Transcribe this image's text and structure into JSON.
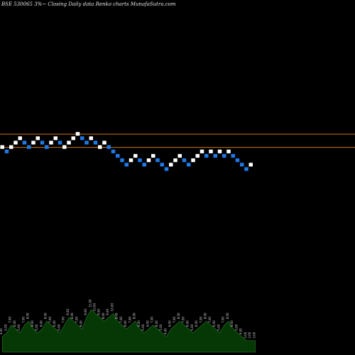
{
  "chart_data": {
    "type": "renko",
    "title": "BSE 530065 3%~  Closing Daily data  Renko  charts MunafaSutra.com",
    "colors": {
      "background": "#000000",
      "up_brick": "#ffffff",
      "down_brick": "#1e7ae6",
      "reference_line": "#c87a14",
      "volume_area": "#063806",
      "volume_outline": "#2c7a2c"
    },
    "reference_levels": [
      3,
      0
    ],
    "bricks": [
      {
        "dir": "up",
        "level": 0
      },
      {
        "dir": "down",
        "level": -1
      },
      {
        "dir": "up",
        "level": 0
      },
      {
        "dir": "up",
        "level": 1
      },
      {
        "dir": "up",
        "level": 2
      },
      {
        "dir": "down",
        "level": 1
      },
      {
        "dir": "down",
        "level": 0
      },
      {
        "dir": "up",
        "level": 1
      },
      {
        "dir": "up",
        "level": 2
      },
      {
        "dir": "down",
        "level": 1
      },
      {
        "dir": "down",
        "level": 0
      },
      {
        "dir": "up",
        "level": 1
      },
      {
        "dir": "up",
        "level": 2
      },
      {
        "dir": "down",
        "level": 1
      },
      {
        "dir": "up",
        "level": 0
      },
      {
        "dir": "up",
        "level": 1
      },
      {
        "dir": "up",
        "level": 2
      },
      {
        "dir": "up",
        "level": 3
      },
      {
        "dir": "down",
        "level": 2
      },
      {
        "dir": "down",
        "level": 1
      },
      {
        "dir": "up",
        "level": 2
      },
      {
        "dir": "down",
        "level": 1
      },
      {
        "dir": "up",
        "level": 0
      },
      {
        "dir": "up",
        "level": 1
      },
      {
        "dir": "down",
        "level": 0
      },
      {
        "dir": "down",
        "level": -1
      },
      {
        "dir": "down",
        "level": -2
      },
      {
        "dir": "down",
        "level": -3
      },
      {
        "dir": "down",
        "level": -4
      },
      {
        "dir": "up",
        "level": -3
      },
      {
        "dir": "up",
        "level": -2
      },
      {
        "dir": "down",
        "level": -3
      },
      {
        "dir": "down",
        "level": -4
      },
      {
        "dir": "up",
        "level": -3
      },
      {
        "dir": "up",
        "level": -2
      },
      {
        "dir": "down",
        "level": -3
      },
      {
        "dir": "down",
        "level": -4
      },
      {
        "dir": "down",
        "level": -5
      },
      {
        "dir": "up",
        "level": -4
      },
      {
        "dir": "up",
        "level": -3
      },
      {
        "dir": "up",
        "level": -2
      },
      {
        "dir": "down",
        "level": -3
      },
      {
        "dir": "down",
        "level": -4
      },
      {
        "dir": "up",
        "level": -3
      },
      {
        "dir": "up",
        "level": -2
      },
      {
        "dir": "up",
        "level": -1
      },
      {
        "dir": "down",
        "level": -2
      },
      {
        "dir": "up",
        "level": -1
      },
      {
        "dir": "down",
        "level": -2
      },
      {
        "dir": "up",
        "level": -1
      },
      {
        "dir": "down",
        "level": -2
      },
      {
        "dir": "up",
        "level": -1
      },
      {
        "dir": "down",
        "level": -2
      },
      {
        "dir": "down",
        "level": -3
      },
      {
        "dir": "down",
        "level": -4
      },
      {
        "dir": "down",
        "level": -5
      },
      {
        "dir": "up",
        "level": -4
      }
    ],
    "volume_values": [
      4,
      5,
      7,
      6,
      5,
      7,
      8,
      6,
      5,
      6,
      8,
      7,
      6,
      5,
      7,
      9,
      8,
      7,
      6,
      9,
      11,
      10,
      9,
      8,
      9,
      10,
      8,
      7,
      6,
      7,
      8,
      6,
      5,
      6,
      7,
      6,
      5,
      4,
      6,
      7,
      8,
      7,
      6,
      5,
      6,
      7,
      8,
      7,
      6,
      5,
      7,
      8,
      6,
      5,
      4,
      3,
      3,
      3
    ]
  }
}
